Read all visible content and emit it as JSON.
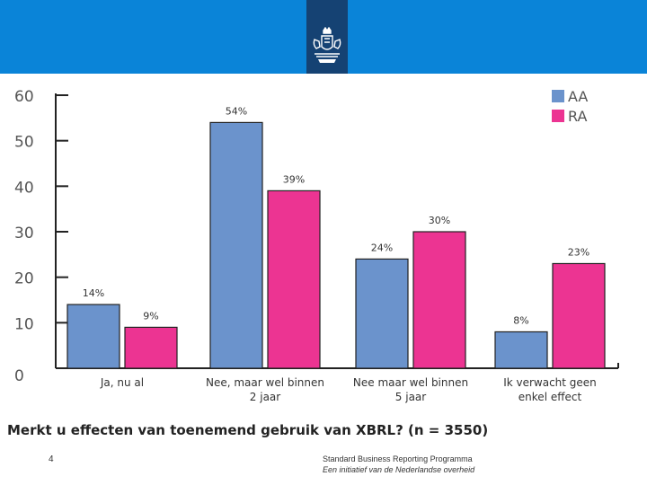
{
  "header": {
    "logo_icon": "coat-of-arms-icon",
    "bar_color": "#0a84d8",
    "logo_box_color": "#154273"
  },
  "chart_data": {
    "type": "bar",
    "title": "Merkt u effecten van toenemend gebruik van XBRL? (n = 3550)",
    "categories": [
      [
        "Ja, nu al"
      ],
      [
        "Nee, maar wel binnen",
        "2 jaar"
      ],
      [
        "Nee maar wel binnen",
        "5 jaar"
      ],
      [
        "Ik verwacht geen",
        "enkel effect"
      ]
    ],
    "series": [
      {
        "name": "AA",
        "color": "#6b93cc",
        "values": [
          14,
          54,
          24,
          8
        ],
        "labels": [
          "14%",
          "54%",
          "24%",
          "8%"
        ]
      },
      {
        "name": "RA",
        "color": "#ec3492",
        "values": [
          9,
          39,
          30,
          23
        ],
        "labels": [
          "9%",
          "39%",
          "30%",
          "23%"
        ]
      }
    ],
    "yticks": [
      0,
      10,
      20,
      30,
      40,
      50,
      60
    ],
    "ylim": [
      0,
      60
    ],
    "xlabel": "",
    "ylabel": "",
    "legend_position": "top-right"
  },
  "footer": {
    "page_number": "4",
    "line1": "Standard Business Reporting Programma",
    "line2": "Een initiatief van de Nederlandse overheid"
  }
}
